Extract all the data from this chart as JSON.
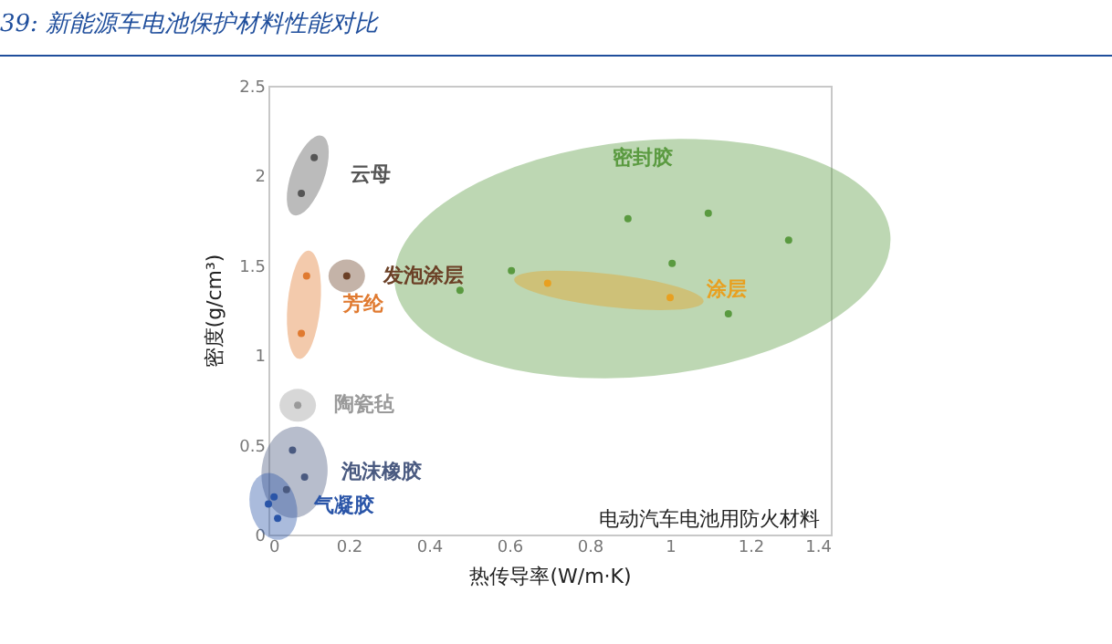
{
  "chart_data": {
    "type": "scatter",
    "title": "39: 新能源车电池保护材料性能对比",
    "xlabel": "热传导率(W/m·K)",
    "ylabel": "密度(g/cm³)",
    "xlim": [
      0,
      1.4
    ],
    "xticks": [
      0,
      0.2,
      0.4,
      0.6,
      0.8,
      1,
      1.2,
      1.4
    ],
    "ylim": [
      0,
      2.5
    ],
    "yticks": [
      0,
      0.5,
      1,
      1.5,
      2,
      2.5
    ],
    "marker": "circle",
    "series": [
      {
        "name": "云母",
        "color": "#555555",
        "x": [
          0.114,
          0.082
        ],
        "values": [
          2.1,
          1.9
        ]
      },
      {
        "name": "发泡涂层",
        "color": "#6b4026",
        "x": [
          0.195
        ],
        "values": [
          1.44
        ]
      },
      {
        "name": "芳纶",
        "color": "#e07a30",
        "x": [
          0.095,
          0.082
        ],
        "values": [
          1.44,
          1.12
        ]
      },
      {
        "name": "陶瓷毡",
        "color": "#9a9a9a",
        "x": [
          0.073
        ],
        "values": [
          0.72
        ]
      },
      {
        "name": "泡沫橡胶",
        "color": "#4a5a80",
        "x": [
          0.06,
          0.09,
          0.045
        ],
        "values": [
          0.47,
          0.32,
          0.25
        ]
      },
      {
        "name": "气凝胶",
        "color": "#2a55a8",
        "x": [
          0.014,
          0.023,
          0.0
        ],
        "values": [
          0.21,
          0.09,
          0.17
        ]
      },
      {
        "name": "密封胶",
        "color": "#5a9a40",
        "x": [
          0.895,
          1.095,
          1.295,
          1.005,
          0.605,
          0.477,
          1.145
        ],
        "values": [
          1.76,
          1.79,
          1.64,
          1.51,
          1.47,
          1.36,
          1.23
        ]
      },
      {
        "name": "涂层",
        "color": "#e8a020",
        "x": [
          0.695,
          1.0
        ],
        "values": [
          1.4,
          1.32
        ]
      }
    ],
    "annotations": [
      "电动汽车电池用防火材料"
    ]
  }
}
